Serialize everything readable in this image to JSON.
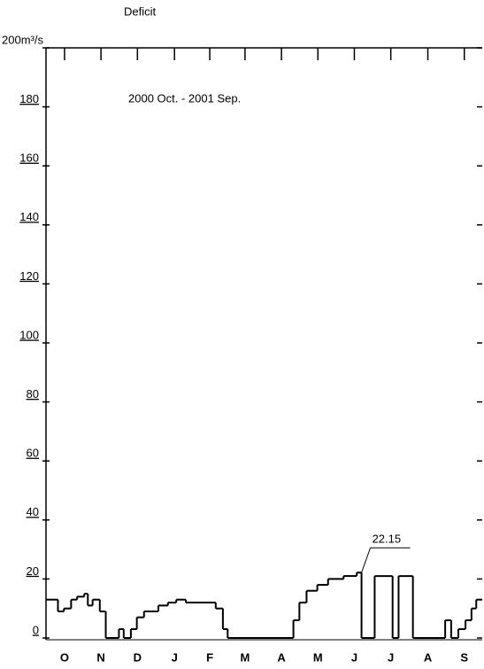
{
  "chart_data": {
    "type": "step",
    "title": "Deficit",
    "subtitle": "2000 Oct. - 2001 Sep.",
    "annotation": "22.15",
    "color": "#000000",
    "x": [
      0,
      10,
      15,
      21,
      26,
      32,
      35,
      39,
      45,
      50,
      61,
      65,
      71,
      76,
      82,
      94,
      102,
      109,
      117,
      142,
      148,
      152,
      207,
      212,
      218,
      227,
      236,
      249,
      260,
      264,
      275,
      290,
      295,
      307,
      334,
      339,
      345,
      351,
      356,
      360
    ],
    "values": [
      13,
      9,
      10,
      13,
      14,
      15,
      11,
      13,
      9,
      0,
      3,
      0,
      3,
      7,
      9,
      11,
      12,
      13,
      12,
      10,
      3,
      0,
      6,
      12,
      16,
      18,
      20,
      21,
      22.15,
      0,
      21,
      0,
      21,
      0,
      6,
      0,
      3,
      6,
      10,
      13
    ],
    "xlim": [
      0,
      365
    ],
    "xticks": [
      {
        "value": 15.5,
        "label": "O"
      },
      {
        "value": 46,
        "label": "N"
      },
      {
        "value": 76.5,
        "label": "D"
      },
      {
        "value": 107.5,
        "label": "J"
      },
      {
        "value": 137,
        "label": "F"
      },
      {
        "value": 166.5,
        "label": "M"
      },
      {
        "value": 197,
        "label": "A"
      },
      {
        "value": 227.5,
        "label": "M"
      },
      {
        "value": 258,
        "label": "J"
      },
      {
        "value": 288.5,
        "label": "J"
      },
      {
        "value": 319.5,
        "label": "A"
      },
      {
        "value": 350,
        "label": "S"
      }
    ],
    "ylim": [
      0,
      200
    ],
    "yticks": [
      0,
      20,
      40,
      60,
      80,
      100,
      120,
      140,
      160,
      180,
      {
        "value": 200,
        "label": "200m³/s"
      }
    ]
  }
}
